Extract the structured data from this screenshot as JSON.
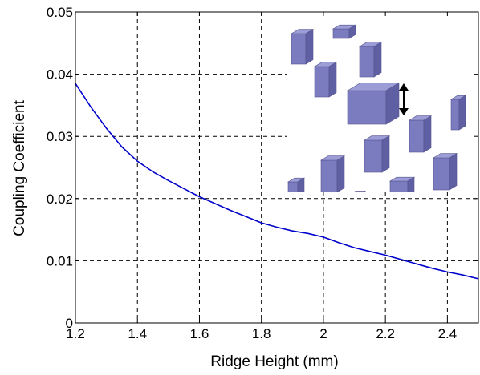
{
  "chart_data": {
    "type": "line",
    "title": "",
    "xlabel": "Ridge Height (mm)",
    "ylabel": "Coupling Coefficient",
    "xlim": [
      1.2,
      2.5
    ],
    "ylim": [
      0,
      0.05
    ],
    "grid": true,
    "x_ticks": [
      1.2,
      1.4,
      1.6,
      1.8,
      2.0,
      2.2,
      2.4
    ],
    "x_tick_labels": [
      "1.2",
      "1.4",
      "1.6",
      "1.8",
      "2",
      "2.2",
      "2.4"
    ],
    "y_ticks": [
      0,
      0.01,
      0.02,
      0.03,
      0.04,
      0.05
    ],
    "y_tick_labels": [
      "0",
      "0.01",
      "0.02",
      "0.03",
      "0.04",
      "0.05"
    ],
    "line_color": "#0000cc",
    "series": [
      {
        "x": [
          1.2,
          1.25,
          1.3,
          1.35,
          1.4,
          1.45,
          1.5,
          1.55,
          1.6,
          1.65,
          1.7,
          1.75,
          1.8,
          1.85,
          1.9,
          1.95,
          2.0,
          2.05,
          2.1,
          2.15,
          2.2,
          2.25,
          2.3,
          2.35,
          2.4,
          2.45,
          2.5
        ],
        "y": [
          0.0385,
          0.0347,
          0.0313,
          0.0283,
          0.026,
          0.0243,
          0.0229,
          0.0216,
          0.0203,
          0.0192,
          0.0181,
          0.0171,
          0.0161,
          0.0154,
          0.0148,
          0.0144,
          0.0138,
          0.0129,
          0.0121,
          0.0115,
          0.0109,
          0.0102,
          0.0095,
          0.0088,
          0.0082,
          0.0077,
          0.0071
        ]
      }
    ],
    "inset": {
      "description_icon": "ridge-array-blocks-icon",
      "block_color": "#7777bb",
      "arrow": "double-vertical-arrow-icon"
    }
  }
}
